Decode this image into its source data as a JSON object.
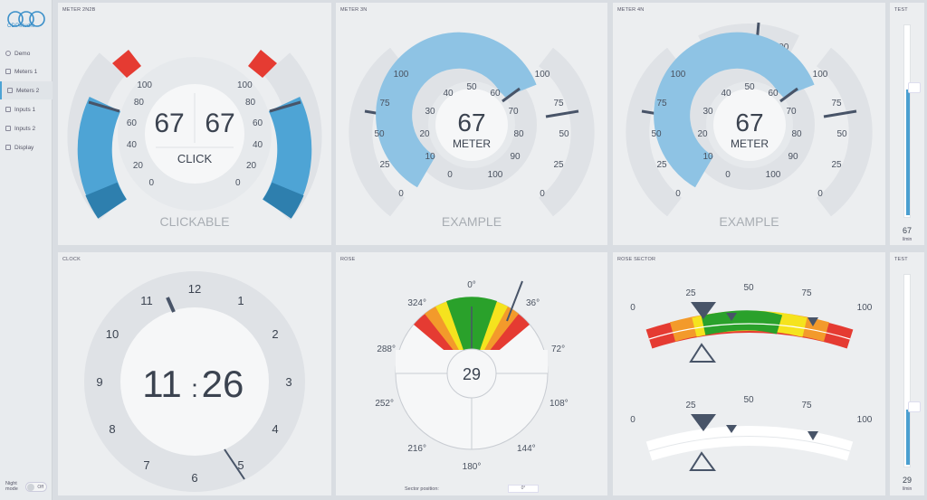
{
  "app": {
    "logo_text": "CDPstudio"
  },
  "sidebar": {
    "items": [
      {
        "label": "Demo",
        "icon": "eye-icon"
      },
      {
        "label": "Meters 1",
        "icon": "meters-icon"
      },
      {
        "label": "Meters 2",
        "icon": "meters-icon",
        "active": true
      },
      {
        "label": "Inputs 1",
        "icon": "edit-icon"
      },
      {
        "label": "Inputs 2",
        "icon": "edit-icon"
      },
      {
        "label": "Display",
        "icon": "display-icon"
      }
    ],
    "night_mode_label": "Night mode",
    "night_mode_state": "Off"
  },
  "panels": {
    "meter_2n2b": {
      "title": "METER 2N2B",
      "value_left": "67",
      "value_right": "67",
      "center_label": "CLICK",
      "caption": "CLICKABLE",
      "scale": [
        "100",
        "80",
        "60",
        "40",
        "20",
        "0"
      ]
    },
    "meter_3n": {
      "title": "METER 3N",
      "value": "67",
      "center_label": "METER",
      "caption": "EXAMPLE",
      "inner_scale": [
        "0",
        "10",
        "20",
        "30",
        "40",
        "50",
        "60",
        "70",
        "80",
        "90",
        "100"
      ],
      "left_scale": [
        "100",
        "75",
        "50",
        "25",
        "0"
      ],
      "right_scale": [
        "100",
        "75",
        "50",
        "25",
        "0"
      ]
    },
    "meter_4n": {
      "title": "METER 4N",
      "value": "67",
      "center_label": "METER",
      "caption": "EXAMPLE",
      "inner_scale": [
        "0",
        "10",
        "20",
        "30",
        "40",
        "50",
        "60",
        "70",
        "80",
        "90",
        "100"
      ],
      "left_scale": [
        "100",
        "75",
        "50",
        "25",
        "0"
      ],
      "right_scale": [
        "100",
        "75",
        "50",
        "25",
        "0"
      ],
      "top_scale": [
        "0",
        "50",
        "100"
      ]
    },
    "test_top": {
      "title": "TEST",
      "value": "67",
      "unit": "l/min",
      "level_pct": 67
    },
    "clock": {
      "title": "CLOCK",
      "hours": "11",
      "minutes": "26",
      "separator": ":",
      "dial": [
        "12",
        "1",
        "2",
        "3",
        "4",
        "5",
        "6",
        "7",
        "8",
        "9",
        "10",
        "11"
      ]
    },
    "rose": {
      "title": "ROSE",
      "value": "29",
      "angles": [
        "0°",
        "36°",
        "72°",
        "108°",
        "144°",
        "180°",
        "216°",
        "252°",
        "288°",
        "324°"
      ],
      "sector_label": "Sector position:",
      "sector_value": "0°"
    },
    "rose_sector": {
      "title": "ROSE SECTOR",
      "scale": [
        "0",
        "25",
        "50",
        "75",
        "100"
      ]
    },
    "test_bottom": {
      "title": "TEST",
      "value": "29",
      "unit": "l/min",
      "level_pct": 29
    }
  },
  "colors": {
    "accent": "#4a9fd0",
    "accent_dark": "#2e7fae",
    "light_blue": "#8ec3e4",
    "red": "#e53b32",
    "orange": "#f39a2b",
    "yellow": "#f5e31e",
    "green": "#2aa12b",
    "needle": "#485468",
    "ring": "#dfe2e6"
  }
}
